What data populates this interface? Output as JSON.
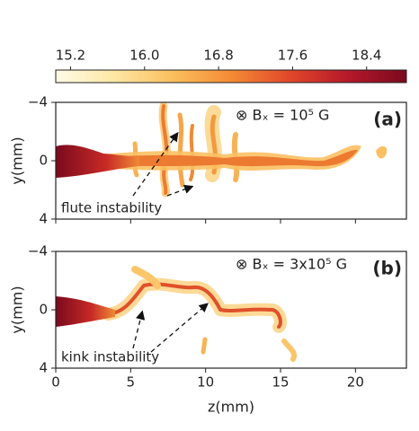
{
  "chart_data": [
    {
      "type": "colorbar",
      "lim": [
        15.04,
        18.83
      ],
      "ticks": [
        15.2,
        {
          "value": 16,
          "label": "16.0"
        },
        16.8,
        17.6,
        18.4
      ],
      "colors": [
        "#fffbe8",
        "#fde7a4",
        "#fbbf5e",
        "#f48b35",
        "#e2472a",
        "#b5182a",
        "#7a0a1e"
      ]
    },
    {
      "type": "image",
      "annotation": "⊗ Bₓ = 10⁵ G",
      "panel_label": "(a)",
      "instability_label": "flute instability",
      "y_label": "y(mm)",
      "xlim": [
        0,
        23.4
      ],
      "ylim": [
        -4,
        4
      ],
      "yticks": [
        {
          "value": -4,
          "label": "−4"
        },
        0,
        4
      ]
    },
    {
      "type": "image",
      "annotation": "⊗ Bₓ = 3x10⁵ G",
      "panel_label": "(b)",
      "instability_label": "kink instability",
      "y_label": "y(mm)",
      "x_label": "z(mm)",
      "xlim": [
        0,
        23.4
      ],
      "ylim": [
        -4,
        4
      ],
      "xticks": [
        0,
        5,
        10,
        15,
        20
      ],
      "yticks": [
        {
          "value": -4,
          "label": "−4"
        },
        0,
        4
      ]
    }
  ]
}
